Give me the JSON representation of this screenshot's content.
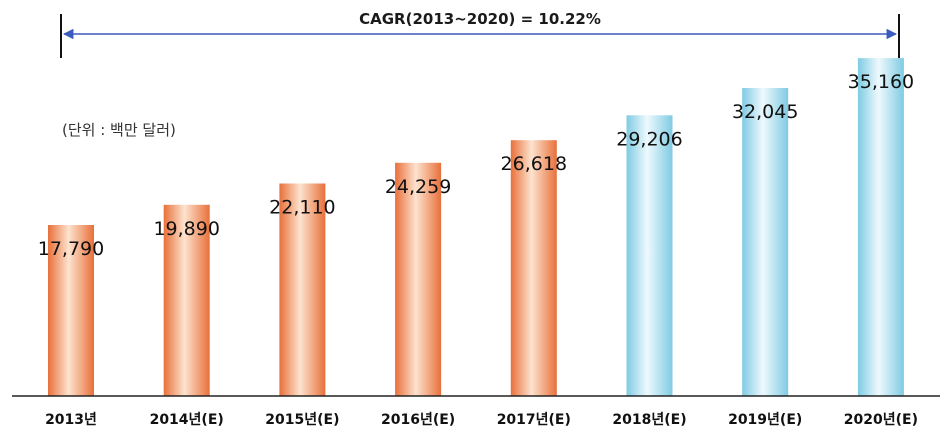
{
  "chart_data": {
    "type": "bar",
    "categories": [
      "2013년",
      "2014년(E)",
      "2015년(E)",
      "2016년(E)",
      "2017년(E)",
      "2018년(E)",
      "2019년(E)",
      "2020년(E)"
    ],
    "values": [
      17790,
      19890,
      22110,
      24259,
      26618,
      29206,
      32045,
      35160
    ],
    "value_labels": [
      "17,790",
      "19,890",
      "22,110",
      "24,259",
      "26,618",
      "29,206",
      "32,045",
      "35,160"
    ],
    "unit_note": "(단위 : 백만 달러)",
    "annotation": "CAGR(2013~2020) = 10.22%",
    "ylim": [
      0,
      36000
    ],
    "grid": false,
    "legend": "none",
    "colors": {
      "actual_light": "#fde3cf",
      "actual_dark": "#ec7a45",
      "estimate_light": "#e8f7fc",
      "estimate_dark": "#86cfe6",
      "arrow": "#3b5bbd"
    },
    "bar_styles": [
      "orange",
      "orange",
      "orange",
      "orange",
      "orange",
      "blue",
      "blue",
      "blue"
    ]
  }
}
